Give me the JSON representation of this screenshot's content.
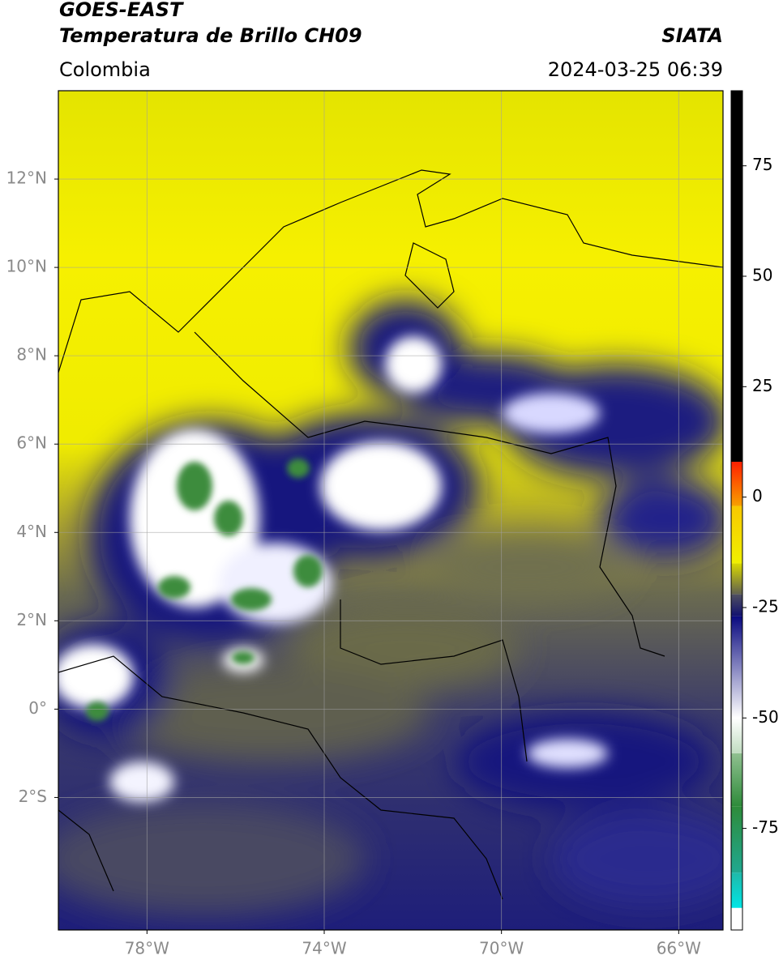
{
  "map": {
    "header": {
      "satellite": "GOES-EAST",
      "product": "Temperatura de Brillo CH09",
      "source": "SIATA",
      "region": "Colombia",
      "datetime": "2024-03-25 06:39"
    },
    "xlim": [
      -80,
      -65
    ],
    "ylim": [
      -5,
      14
    ],
    "xticks": [
      {
        "value": -78,
        "label": "78°W"
      },
      {
        "value": -74,
        "label": "74°W"
      },
      {
        "value": -70,
        "label": "70°W"
      },
      {
        "value": -66,
        "label": "66°W"
      }
    ],
    "yticks": [
      {
        "value": 12,
        "label": "12°N"
      },
      {
        "value": 10,
        "label": "10°N"
      },
      {
        "value": 8,
        "label": "8°N"
      },
      {
        "value": 6,
        "label": "6°N"
      },
      {
        "value": 4,
        "label": "4°N"
      },
      {
        "value": 2,
        "label": "2°N"
      },
      {
        "value": 0,
        "label": "0°"
      },
      {
        "value": -2,
        "label": "2°S"
      }
    ],
    "grid": true,
    "colorbar": {
      "lim": [
        -98,
        92
      ],
      "ticks": [
        75,
        50,
        25,
        0,
        -25,
        -50,
        -75
      ],
      "segments": [
        {
          "lo": -98,
          "hi": -93,
          "color_lo": "#ffffff",
          "color_hi": "#ffffff"
        },
        {
          "lo": -93,
          "hi": -85,
          "color_lo": "#00e5e5",
          "color_hi": "#20b8a8"
        },
        {
          "lo": -85,
          "hi": -70,
          "color_lo": "#20a890",
          "color_hi": "#2e8b3a"
        },
        {
          "lo": -70,
          "hi": -58,
          "color_lo": "#2e8b3a",
          "color_hi": "#90c090"
        },
        {
          "lo": -58,
          "hi": -50,
          "color_lo": "#c0dcc0",
          "color_hi": "#ffffff"
        },
        {
          "lo": -50,
          "hi": -27,
          "color_lo": "#ffffff",
          "color_hi": "#0a0a80"
        },
        {
          "lo": -27,
          "hi": -22,
          "color_lo": "#101070",
          "color_hi": "#505060"
        },
        {
          "lo": -22,
          "hi": -15,
          "color_lo": "#606050",
          "color_hi": "#d8d800"
        },
        {
          "lo": -15,
          "hi": -2,
          "color_lo": "#f0f000",
          "color_hi": "#f8c800"
        },
        {
          "lo": -2,
          "hi": 8,
          "color_lo": "#f8a000",
          "color_hi": "#ff2000"
        },
        {
          "lo": 8,
          "hi": 92,
          "color_lo": "#000000",
          "color_hi": "#000000"
        }
      ]
    }
  }
}
